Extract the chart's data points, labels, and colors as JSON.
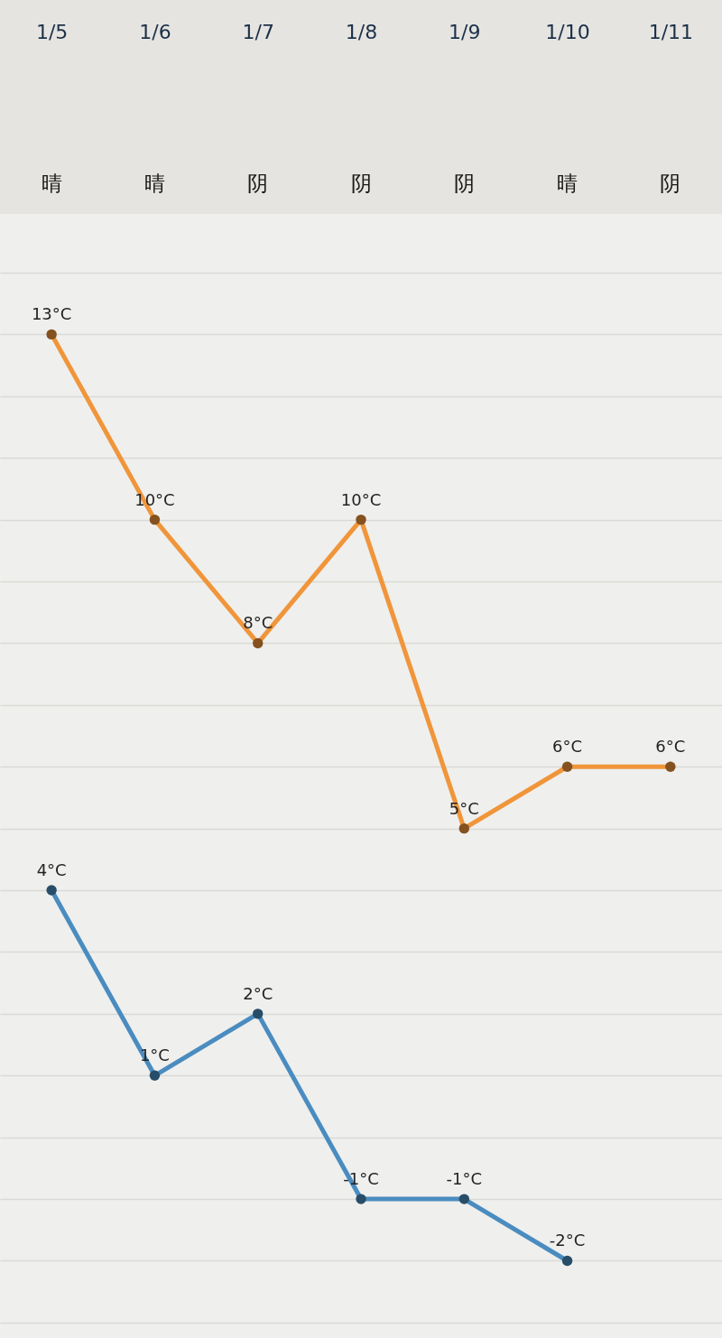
{
  "chart_data": {
    "type": "line",
    "categories": [
      "1/5",
      "1/6",
      "1/7",
      "1/8",
      "1/9",
      "1/10",
      "1/11"
    ],
    "series": [
      {
        "color": "#f0953a",
        "values": [
          13,
          10,
          8,
          10,
          5,
          6,
          6
        ],
        "value_labels": [
          "13°C",
          "10°C",
          "8°C",
          "10°C",
          "5°C",
          "6°C",
          "6°C"
        ]
      },
      {
        "color": "#4a8cc0",
        "values": [
          4,
          1,
          2,
          -1,
          -1,
          -2,
          null
        ],
        "value_labels": [
          "4°C",
          "1°C",
          "2°C",
          "-1°C",
          "-1°C",
          "-2°C",
          null
        ]
      }
    ],
    "ylim": [
      -3.25,
      14.95
    ],
    "yticks": [
      {
        "value": -3,
        "label": null
      },
      {
        "value": -2,
        "label": null
      },
      {
        "value": -1,
        "label": null
      },
      {
        "value": 0,
        "label": null
      },
      {
        "value": 1,
        "label": null
      },
      {
        "value": 2,
        "label": null
      },
      {
        "value": 3,
        "label": null
      },
      {
        "value": 4,
        "label": null
      },
      {
        "value": 5,
        "label": null
      },
      {
        "value": 6,
        "label": null
      },
      {
        "value": 7,
        "label": null
      },
      {
        "value": 8,
        "label": null
      },
      {
        "value": 9,
        "label": null
      },
      {
        "value": 10,
        "label": null
      },
      {
        "value": 11,
        "label": null
      },
      {
        "value": 12,
        "label": null
      },
      {
        "value": 13,
        "label": null
      },
      {
        "value": 14,
        "label": null
      }
    ],
    "grid": "y",
    "tick_labels": "x",
    "marker": "circle",
    "line_style": "solid",
    "annotations": [
      "晴",
      "晴",
      "阴",
      "阴",
      "阴",
      "晴",
      "阴"
    ]
  }
}
